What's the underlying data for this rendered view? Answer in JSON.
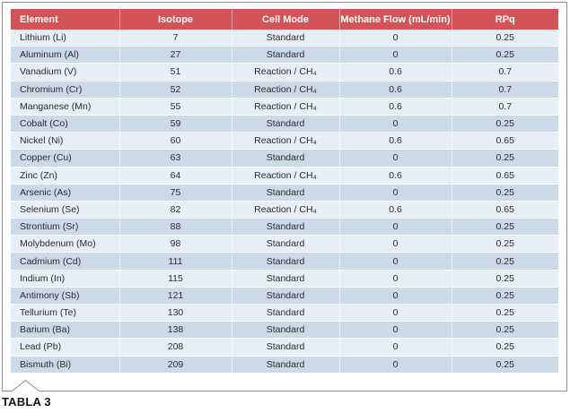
{
  "caption": "TABLA 3",
  "table": {
    "columns": [
      {
        "label": "Element"
      },
      {
        "label": "Isotope"
      },
      {
        "label": "Cell Mode"
      },
      {
        "label": "Methane Flow (mL/min)"
      },
      {
        "label": "RPq"
      }
    ],
    "rows": [
      [
        "Lithium (Li)",
        "7",
        "Standard",
        "0",
        "0.25"
      ],
      [
        "Aluminum (Al)",
        "27",
        "Standard",
        "0",
        "0.25"
      ],
      [
        "Vanadium (V)",
        "51",
        "Reaction / CH₄",
        "0.6",
        "0.7"
      ],
      [
        "Chromium (Cr)",
        "52",
        "Reaction / CH₄",
        "0.6",
        "0.7"
      ],
      [
        "Manganese (Mn)",
        "55",
        "Reaction / CH₄",
        "0.6",
        "0.7"
      ],
      [
        "Cobalt (Co)",
        "59",
        "Standard",
        "0",
        "0.25"
      ],
      [
        "Nickel (Ni)",
        "60",
        "Reaction / CH₄",
        "0.6",
        "0.65"
      ],
      [
        "Copper (Cu)",
        "63",
        "Standard",
        "0",
        "0.25"
      ],
      [
        "Zinc (Zn)",
        "64",
        "Reaction / CH₄",
        "0.6",
        "0.65"
      ],
      [
        "Arsenic (As)",
        "75",
        "Standard",
        "0",
        "0.25"
      ],
      [
        "Selenium (Se)",
        "82",
        "Reaction / CH₄",
        "0.6",
        "0.65"
      ],
      [
        "Strontium (Sr)",
        "88",
        "Standard",
        "0",
        "0.25"
      ],
      [
        "Molybdenum (Mo)",
        "98",
        "Standard",
        "0",
        "0.25"
      ],
      [
        "Cadmium (Cd)",
        "111",
        "Standard",
        "0",
        "0.25"
      ],
      [
        "Indium (In)",
        "115",
        "Standard",
        "0",
        "0.25"
      ],
      [
        "Antimony (Sb)",
        "121",
        "Standard",
        "0",
        "0.25"
      ],
      [
        "Tellurium (Te)",
        "130",
        "Standard",
        "0",
        "0.25"
      ],
      [
        "Barium (Ba)",
        "138",
        "Standard",
        "0",
        "0.25"
      ],
      [
        "Lead (Pb)",
        "208",
        "Standard",
        "0",
        "0.25"
      ],
      [
        "Bismuth (Bi)",
        "209",
        "Standard",
        "0",
        "0.25"
      ]
    ]
  },
  "colors": {
    "header_bg": "#d25459",
    "header_text": "#ffffff",
    "row_light": "#e8eef5",
    "row_dark": "#cbdae9",
    "frame_border": "#8f8f8f",
    "body_text": "#2b2b2b"
  }
}
